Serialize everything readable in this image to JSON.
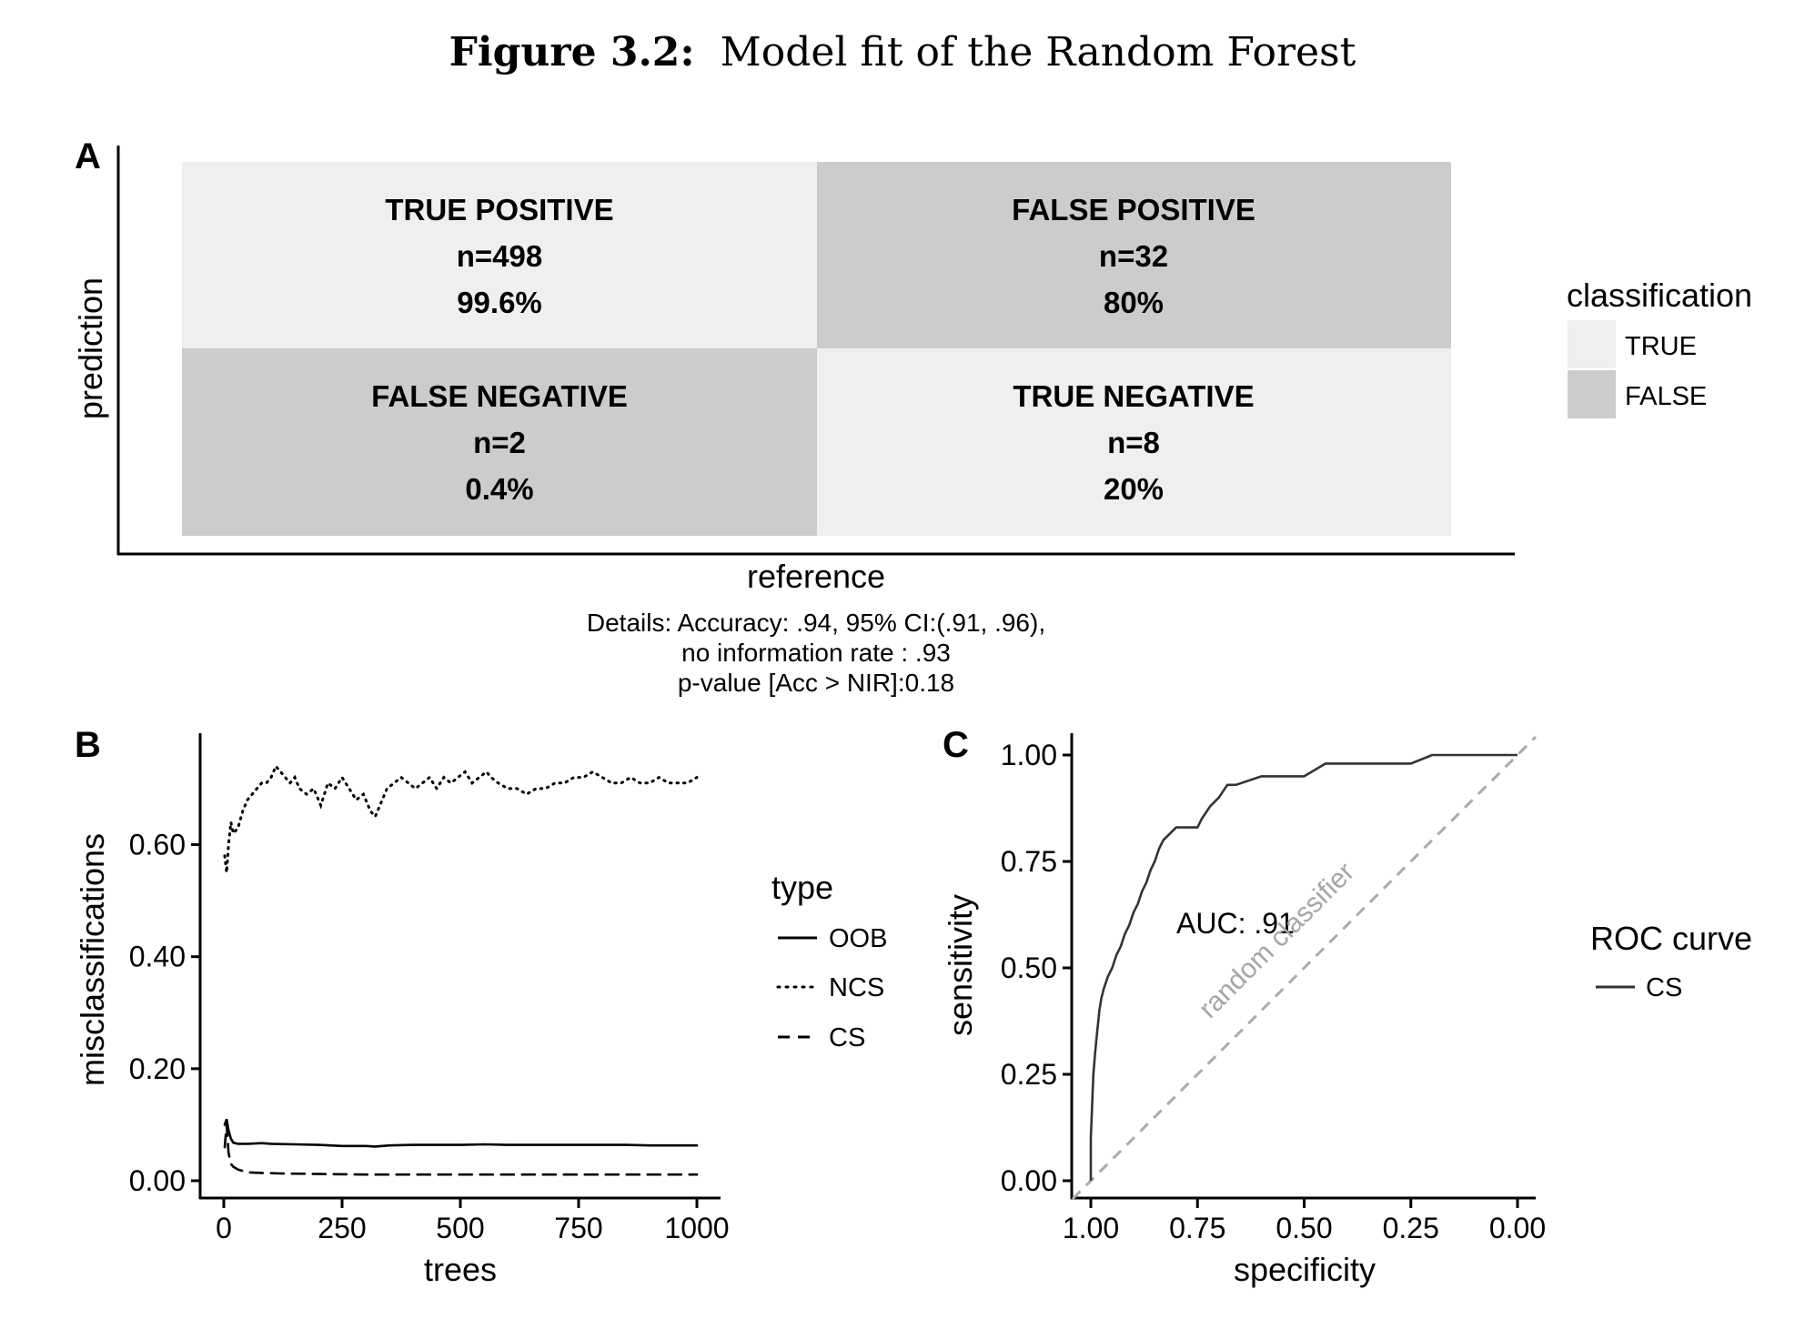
{
  "figure": {
    "label": "Figure 3.2:",
    "title": "Model fit of the Random Forest"
  },
  "panel_a": {
    "tag": "A",
    "xlabel": "reference",
    "ylabel": "prediction",
    "cells": [
      {
        "label": "TRUE POSITIVE",
        "n": "n=498",
        "pct": "99.6%",
        "classification": "TRUE"
      },
      {
        "label": "FALSE POSITIVE",
        "n": "n=32",
        "pct": "80%",
        "classification": "FALSE"
      },
      {
        "label": "FALSE NEGATIVE",
        "n": "n=2",
        "pct": "0.4%",
        "classification": "FALSE"
      },
      {
        "label": "TRUE NEGATIVE",
        "n": "n=8",
        "pct": "20%",
        "classification": "TRUE"
      }
    ],
    "legend": {
      "title": "classification",
      "items": [
        {
          "label": "TRUE",
          "color": "#efefef"
        },
        {
          "label": "FALSE",
          "color": "#cccccc"
        }
      ]
    },
    "details": [
      "Details: Accuracy: .94, 95% CI:(.91, .96),",
      "no information rate : .93",
      "p-value [Acc > NIR]:0.18"
    ]
  },
  "panel_b": {
    "tag": "B",
    "xlabel": "trees",
    "ylabel": "misclassifications",
    "xticks": [
      "0",
      "250",
      "500",
      "750",
      "1000"
    ],
    "yticks": [
      "0.00",
      "0.20",
      "0.40",
      "0.60"
    ],
    "legend": {
      "title": "type",
      "items": [
        {
          "label": "OOB",
          "dash": "solid"
        },
        {
          "label": "NCS",
          "dash": "dotted"
        },
        {
          "label": "CS",
          "dash": "dashed"
        }
      ]
    }
  },
  "panel_c": {
    "tag": "C",
    "xlabel": "specificity",
    "ylabel": "sensitivity",
    "xticks": [
      "1.00",
      "0.75",
      "0.50",
      "0.25",
      "0.00"
    ],
    "yticks": [
      "0.00",
      "0.25",
      "0.50",
      "0.75",
      "1.00"
    ],
    "annotation": "AUC: .91",
    "diagonal_label": "random classifier",
    "legend": {
      "title": "ROC curve",
      "items": [
        {
          "label": "CS"
        }
      ]
    }
  },
  "chart_data": [
    {
      "type": "heatmap",
      "title": "",
      "xlabel": "reference",
      "ylabel": "prediction",
      "cells": [
        {
          "row": 1,
          "col": 1,
          "name": "TRUE POSITIVE",
          "n": 498,
          "percent": 99.6,
          "classification": "TRUE"
        },
        {
          "row": 1,
          "col": 2,
          "name": "FALSE POSITIVE",
          "n": 32,
          "percent": 80,
          "classification": "FALSE"
        },
        {
          "row": 2,
          "col": 1,
          "name": "FALSE NEGATIVE",
          "n": 2,
          "percent": 0.4,
          "classification": "FALSE"
        },
        {
          "row": 2,
          "col": 2,
          "name": "TRUE NEGATIVE",
          "n": 8,
          "percent": 20,
          "classification": "TRUE"
        }
      ]
    },
    {
      "type": "line",
      "xlabel": "trees",
      "ylabel": "misclassifications",
      "xlim": [
        0,
        1000
      ],
      "ylim": [
        0,
        0.76
      ],
      "series": [
        {
          "name": "NCS",
          "dash": "dotted",
          "x": [
            2,
            6,
            10,
            15,
            20,
            30,
            40,
            50,
            60,
            70,
            80,
            90,
            100,
            110,
            120,
            130,
            140,
            150,
            160,
            175,
            190,
            205,
            220,
            235,
            250,
            265,
            280,
            295,
            310,
            320,
            330,
            345,
            360,
            375,
            390,
            405,
            420,
            435,
            450,
            465,
            480,
            495,
            510,
            525,
            540,
            555,
            565,
            580,
            600,
            620,
            640,
            660,
            680,
            700,
            720,
            740,
            760,
            780,
            800,
            820,
            840,
            860,
            880,
            900,
            920,
            940,
            960,
            980,
            1000
          ],
          "y": [
            0.58,
            0.55,
            0.6,
            0.64,
            0.62,
            0.63,
            0.66,
            0.68,
            0.69,
            0.7,
            0.71,
            0.71,
            0.72,
            0.74,
            0.73,
            0.72,
            0.71,
            0.72,
            0.7,
            0.69,
            0.7,
            0.67,
            0.71,
            0.7,
            0.72,
            0.7,
            0.68,
            0.69,
            0.66,
            0.65,
            0.67,
            0.7,
            0.71,
            0.72,
            0.71,
            0.7,
            0.71,
            0.72,
            0.7,
            0.72,
            0.71,
            0.72,
            0.73,
            0.71,
            0.72,
            0.73,
            0.72,
            0.71,
            0.7,
            0.7,
            0.69,
            0.7,
            0.7,
            0.71,
            0.71,
            0.72,
            0.72,
            0.73,
            0.72,
            0.71,
            0.71,
            0.72,
            0.71,
            0.71,
            0.72,
            0.71,
            0.71,
            0.71,
            0.72
          ]
        },
        {
          "name": "OOB",
          "dash": "solid",
          "x": [
            2,
            6,
            10,
            15,
            20,
            30,
            50,
            80,
            100,
            150,
            200,
            250,
            300,
            320,
            350,
            400,
            450,
            500,
            550,
            600,
            650,
            700,
            750,
            800,
            850,
            900,
            950,
            1000
          ],
          "y": [
            0.1,
            0.11,
            0.09,
            0.075,
            0.068,
            0.066,
            0.066,
            0.067,
            0.066,
            0.065,
            0.064,
            0.062,
            0.062,
            0.061,
            0.063,
            0.064,
            0.064,
            0.064,
            0.065,
            0.064,
            0.064,
            0.064,
            0.064,
            0.064,
            0.064,
            0.063,
            0.063,
            0.063
          ]
        },
        {
          "name": "CS",
          "dash": "dashed",
          "x": [
            2,
            6,
            10,
            15,
            20,
            30,
            50,
            80,
            120,
            200,
            300,
            400,
            500,
            600,
            700,
            800,
            900,
            1000
          ],
          "y": [
            0.06,
            0.1,
            0.05,
            0.03,
            0.025,
            0.02,
            0.015,
            0.014,
            0.013,
            0.012,
            0.011,
            0.011,
            0.011,
            0.011,
            0.011,
            0.011,
            0.011,
            0.011
          ]
        }
      ]
    },
    {
      "type": "line",
      "xlabel": "specificity",
      "ylabel": "sensitivity",
      "xlim": [
        1,
        0
      ],
      "ylim": [
        0,
        1
      ],
      "auc": 0.91,
      "series": [
        {
          "name": "CS",
          "specificity": [
            1,
            1,
            0.994,
            0.99,
            0.985,
            0.98,
            0.975,
            0.97,
            0.96,
            0.95,
            0.94,
            0.93,
            0.92,
            0.91,
            0.9,
            0.89,
            0.88,
            0.87,
            0.86,
            0.85,
            0.84,
            0.83,
            0.8,
            0.77,
            0.75,
            0.74,
            0.72,
            0.7,
            0.68,
            0.66,
            0.6,
            0.55,
            0.5,
            0.45,
            0.4,
            0.35,
            0.3,
            0.25,
            0.2,
            0.18,
            0.1,
            0.05,
            0
          ],
          "sensitivity": [
            0,
            0.1,
            0.25,
            0.3,
            0.35,
            0.4,
            0.43,
            0.45,
            0.48,
            0.5,
            0.53,
            0.55,
            0.58,
            0.6,
            0.63,
            0.65,
            0.68,
            0.7,
            0.73,
            0.75,
            0.78,
            0.8,
            0.83,
            0.83,
            0.83,
            0.85,
            0.88,
            0.9,
            0.93,
            0.93,
            0.95,
            0.95,
            0.95,
            0.98,
            0.98,
            0.98,
            0.98,
            0.98,
            1,
            1,
            1,
            1,
            1
          ]
        },
        {
          "name": "random classifier",
          "dash": "dashed",
          "specificity": [
            1,
            0
          ],
          "sensitivity": [
            0,
            1
          ]
        }
      ]
    }
  ]
}
